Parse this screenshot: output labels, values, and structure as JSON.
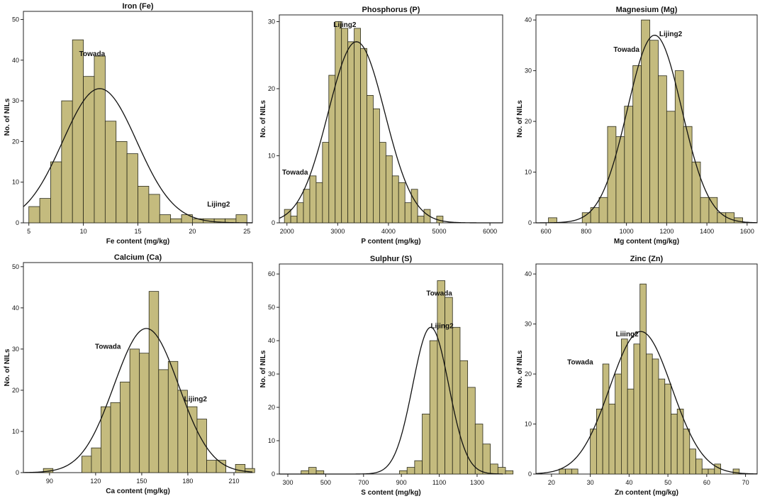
{
  "chart_data": [
    {
      "type": "bar",
      "title": "Iron (Fe)",
      "xlabel": "Fe content (mg/kg)",
      "ylabel": "No. of NILs",
      "xlim": [
        4.5,
        25.5
      ],
      "ylim": [
        0,
        52
      ],
      "xticks": [
        5,
        10,
        15,
        20,
        25
      ],
      "yticks": [
        0,
        10,
        20,
        30,
        40,
        50
      ],
      "bin_start": 5,
      "bin_width": 1,
      "values": [
        4,
        6,
        15,
        30,
        45,
        36,
        41,
        25,
        20,
        17,
        9,
        7,
        2,
        1,
        2,
        1,
        1,
        1,
        1,
        2
      ],
      "normal": {
        "mean": 11.5,
        "sd": 3.4,
        "peak": 33
      },
      "annotations": [
        {
          "text": "Towada",
          "x": 10.8,
          "y": 41
        },
        {
          "text": "Lijing2",
          "x": 22.4,
          "y": 4
        }
      ]
    },
    {
      "type": "bar",
      "title": "Phosphorus (P)",
      "xlabel": "P content (mg/kg)",
      "ylabel": "No. of NILs",
      "xlim": [
        1850,
        6250
      ],
      "ylim": [
        0,
        31
      ],
      "xticks": [
        2000,
        3000,
        4000,
        5000,
        6000
      ],
      "yticks": [
        0,
        10,
        20,
        30
      ],
      "bin_start": 1950,
      "bin_width": 125,
      "values": [
        2,
        1,
        3,
        5,
        7,
        6,
        12,
        22,
        30,
        29,
        27,
        29,
        26,
        19,
        17,
        12,
        10,
        7,
        6,
        3,
        5,
        1,
        2,
        0,
        1
      ],
      "normal": {
        "mean": 3370,
        "sd": 560,
        "peak": 27
      },
      "annotations": [
        {
          "text": "Lijing2",
          "x": 3140,
          "y": 29.2
        },
        {
          "text": "Towada",
          "x": 2160,
          "y": 7.2
        }
      ]
    },
    {
      "type": "bar",
      "title": "Magnesium (Mg)",
      "xlabel": "Mg content (mg/kg)",
      "ylabel": "No. of NILs",
      "xlim": [
        550,
        1650
      ],
      "ylim": [
        0,
        41
      ],
      "xticks": [
        600,
        800,
        1000,
        1200,
        1400,
        1600
      ],
      "yticks": [
        0,
        10,
        20,
        30,
        40
      ],
      "bin_start": 612,
      "bin_width": 42,
      "values": [
        1,
        0,
        0,
        0,
        2,
        3,
        5,
        19,
        17,
        23,
        31,
        40,
        36,
        29,
        22,
        30,
        19,
        12,
        5,
        5,
        2,
        2,
        1
      ],
      "normal": {
        "mean": 1140,
        "sd": 135,
        "peak": 37
      },
      "annotations": [
        {
          "text": "Towada",
          "x": 1000,
          "y": 33.7
        },
        {
          "text": "Lijing2",
          "x": 1220,
          "y": 36.8
        }
      ]
    },
    {
      "type": "bar",
      "title": "Calcium (Ca)",
      "xlabel": "Ca content (mg/kg)",
      "ylabel": "No. of NILs",
      "xlim": [
        73,
        222
      ],
      "ylim": [
        0,
        51
      ],
      "xticks": [
        90,
        120,
        150,
        180,
        210
      ],
      "yticks": [
        0,
        10,
        20,
        30,
        40,
        50
      ],
      "bin_start": 86,
      "bin_width": 6.25,
      "values": [
        1,
        0,
        0,
        0,
        4,
        6,
        16,
        17,
        22,
        30,
        29,
        44,
        25,
        27,
        20,
        16,
        13,
        3,
        3,
        0,
        2,
        1
      ],
      "normal": {
        "mean": 153,
        "sd": 21,
        "peak": 35
      },
      "annotations": [
        {
          "text": "Towada",
          "x": 128,
          "y": 30.1
        },
        {
          "text": "Lijing2",
          "x": 185,
          "y": 17.3
        }
      ]
    },
    {
      "type": "bar",
      "title": "Sulphur (S)",
      "xlabel": "S content (mg/kg)",
      "ylabel": "No. of NILs",
      "xlim": [
        255,
        1435
      ],
      "ylim": [
        0,
        63
      ],
      "xticks": [
        300,
        500,
        700,
        900,
        1100,
        1300
      ],
      "yticks": [
        0,
        10,
        20,
        30,
        40,
        50,
        60
      ],
      "bin_start": 370,
      "bin_width": 40,
      "values": [
        1,
        2,
        1,
        0,
        0,
        0,
        0,
        0,
        0,
        0,
        0,
        0,
        0,
        1,
        2,
        4,
        18,
        40,
        58,
        53,
        44,
        34,
        26,
        15,
        9,
        3,
        2,
        1
      ],
      "normal": {
        "mean": 1055,
        "sd": 95,
        "peak": 44
      },
      "annotations": [
        {
          "text": "Towada",
          "x": 1100,
          "y": 53.5
        },
        {
          "text": "Lijing2",
          "x": 1115,
          "y": 43.7
        }
      ]
    },
    {
      "type": "bar",
      "title": "Zinc (Zn)",
      "xlabel": "Zn content (mg/kg)",
      "ylabel": "No. of NILs",
      "xlim": [
        16,
        73
      ],
      "ylim": [
        0,
        42
      ],
      "xticks": [
        20,
        30,
        40,
        50,
        60,
        70
      ],
      "yticks": [
        0,
        10,
        20,
        30,
        40
      ],
      "bin_start": 22,
      "bin_width": 1.6,
      "values": [
        1,
        1,
        1,
        0,
        0,
        9,
        13,
        22,
        14,
        20,
        27,
        17,
        26,
        38,
        24,
        23,
        19,
        18,
        12,
        13,
        9,
        5,
        3,
        1,
        1,
        2,
        0,
        0,
        1
      ],
      "normal": {
        "mean": 43,
        "sd": 8,
        "peak": 28.5
      },
      "annotations": [
        {
          "text": "Liiing2",
          "x": 39.5,
          "y": 27.5
        },
        {
          "text": "Towada",
          "x": 27.4,
          "y": 21.9
        }
      ]
    }
  ]
}
